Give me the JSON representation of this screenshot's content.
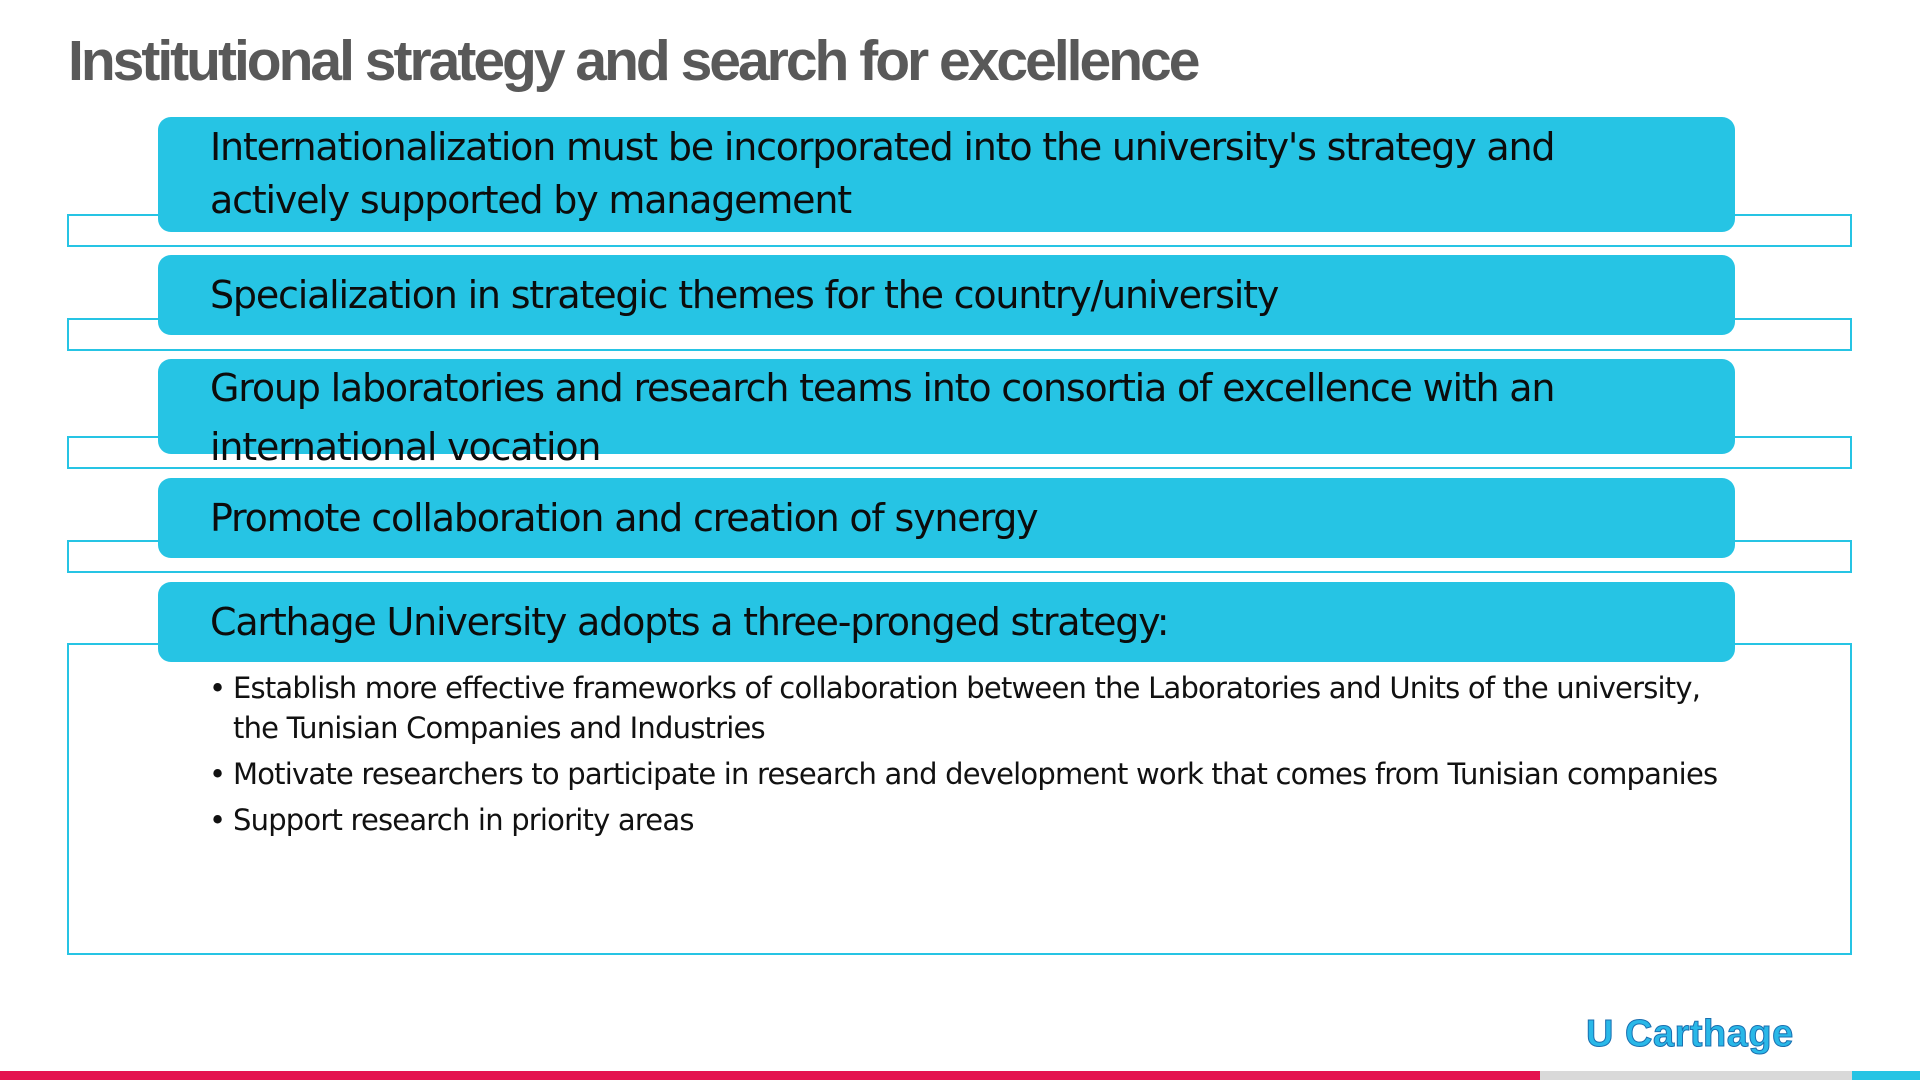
{
  "slide": {
    "title": "Institutional strategy and search for excellence",
    "items": [
      {
        "text": "Internationalization must be incorporated into the university's strategy and actively supported by management"
      },
      {
        "text": "Specialization in strategic themes for the country/university"
      },
      {
        "text": "Group laboratories and research teams into consortia of excellence with an international vocation"
      },
      {
        "text": "Promote collaboration and creation of synergy"
      },
      {
        "text": "Carthage University adopts a three-pronged strategy:"
      }
    ],
    "bullets": [
      {
        "mark": "•",
        "text": " Establish more effective frameworks of collaboration between the Laboratories and Units of the university, the Tunisian Companies and Industries"
      },
      {
        "mark": "•",
        "text": "Motivate researchers to participate in research and development work that comes from Tunisian companies"
      },
      {
        "mark": "•",
        "text": "Support research in priority areas"
      }
    ],
    "brand": "U Carthage"
  },
  "colors": {
    "accent": "#26c4e4",
    "title": "#595959",
    "footer_red": "#e4134f",
    "footer_grey": "#d9d9d9",
    "footer_cyan": "#26c4e4",
    "brand": "#29b8e8"
  }
}
